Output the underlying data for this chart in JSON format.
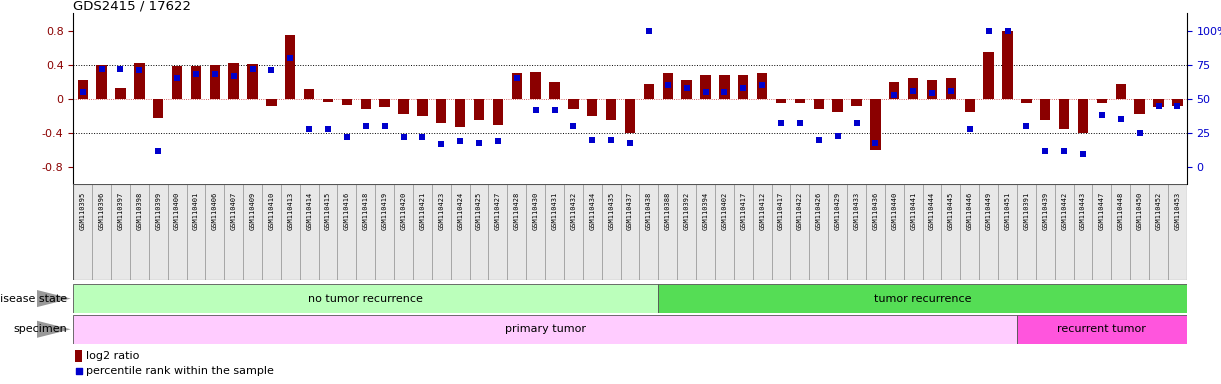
{
  "title": "GDS2415 / 17622",
  "samples": [
    "GSM110395",
    "GSM110396",
    "GSM110397",
    "GSM110398",
    "GSM110399",
    "GSM110400",
    "GSM110401",
    "GSM110406",
    "GSM110407",
    "GSM110409",
    "GSM110410",
    "GSM110413",
    "GSM110414",
    "GSM110415",
    "GSM110416",
    "GSM110418",
    "GSM110419",
    "GSM110420",
    "GSM110421",
    "GSM110423",
    "GSM110424",
    "GSM110425",
    "GSM110427",
    "GSM110428",
    "GSM110430",
    "GSM110431",
    "GSM110432",
    "GSM110434",
    "GSM110435",
    "GSM110437",
    "GSM110438",
    "GSM110388",
    "GSM110392",
    "GSM110394",
    "GSM110402",
    "GSM110417",
    "GSM110412",
    "GSM110417",
    "GSM110422",
    "GSM110426",
    "GSM110429",
    "GSM110433",
    "GSM110436",
    "GSM110440",
    "GSM110441",
    "GSM110444",
    "GSM110445",
    "GSM110446",
    "GSM110449",
    "GSM110451",
    "GSM110391",
    "GSM110439",
    "GSM110442",
    "GSM110443",
    "GSM110447",
    "GSM110448",
    "GSM110450",
    "GSM110452",
    "GSM110453"
  ],
  "log2_ratio": [
    0.22,
    0.4,
    0.13,
    0.42,
    -0.22,
    0.38,
    0.38,
    0.4,
    0.42,
    0.41,
    -0.08,
    0.75,
    0.12,
    -0.04,
    -0.07,
    -0.12,
    -0.1,
    -0.18,
    -0.2,
    -0.28,
    -0.33,
    -0.25,
    -0.3,
    0.3,
    0.32,
    0.2,
    -0.12,
    -0.2,
    -0.25,
    -0.4,
    0.18,
    0.3,
    0.22,
    0.28,
    0.28,
    0.28,
    0.3,
    -0.05,
    -0.05,
    -0.12,
    -0.15,
    -0.08,
    -0.6,
    0.2,
    0.25,
    0.22,
    0.24,
    -0.15,
    0.55,
    0.8,
    -0.05,
    -0.25,
    -0.35,
    -0.4,
    -0.05,
    0.18,
    -0.18,
    -0.1,
    -0.08
  ],
  "percentile": [
    55,
    72,
    72,
    71,
    12,
    65,
    68,
    68,
    67,
    72,
    71,
    80,
    28,
    28,
    22,
    30,
    30,
    22,
    22,
    17,
    19,
    18,
    19,
    65,
    42,
    42,
    30,
    20,
    20,
    18,
    100,
    60,
    58,
    55,
    55,
    58,
    60,
    32,
    32,
    20,
    23,
    32,
    18,
    53,
    56,
    54,
    56,
    28,
    100,
    100,
    30,
    12,
    12,
    10,
    38,
    35,
    25,
    45,
    45
  ],
  "bar_color": "#8B0000",
  "dot_color": "#0000CC",
  "ylim": [
    -1.0,
    1.0
  ],
  "yticks_left": [
    -0.8,
    -0.4,
    0.0,
    0.4,
    0.8
  ],
  "yticks_right": [
    0,
    25,
    50,
    75,
    100
  ],
  "dotted_hlines": [
    0.4,
    -0.4
  ],
  "zero_hline": 0.0,
  "no_recurrence_count": 31,
  "primary_tumor_count": 50,
  "disease_state_no": "no tumor recurrence",
  "disease_state_yes": "tumor recurrence",
  "specimen_primary": "primary tumor",
  "specimen_recurrent": "recurrent tumor",
  "color_no_recurrence": "#BBFFBB",
  "color_recurrence": "#55DD55",
  "color_primary": "#FFCCFF",
  "color_recurrent": "#FF55DD",
  "bg_color": "#FFFFFF",
  "label_disease_state": "disease state",
  "label_specimen": "specimen",
  "legend_bar": "log2 ratio",
  "legend_dot": "percentile rank within the sample"
}
